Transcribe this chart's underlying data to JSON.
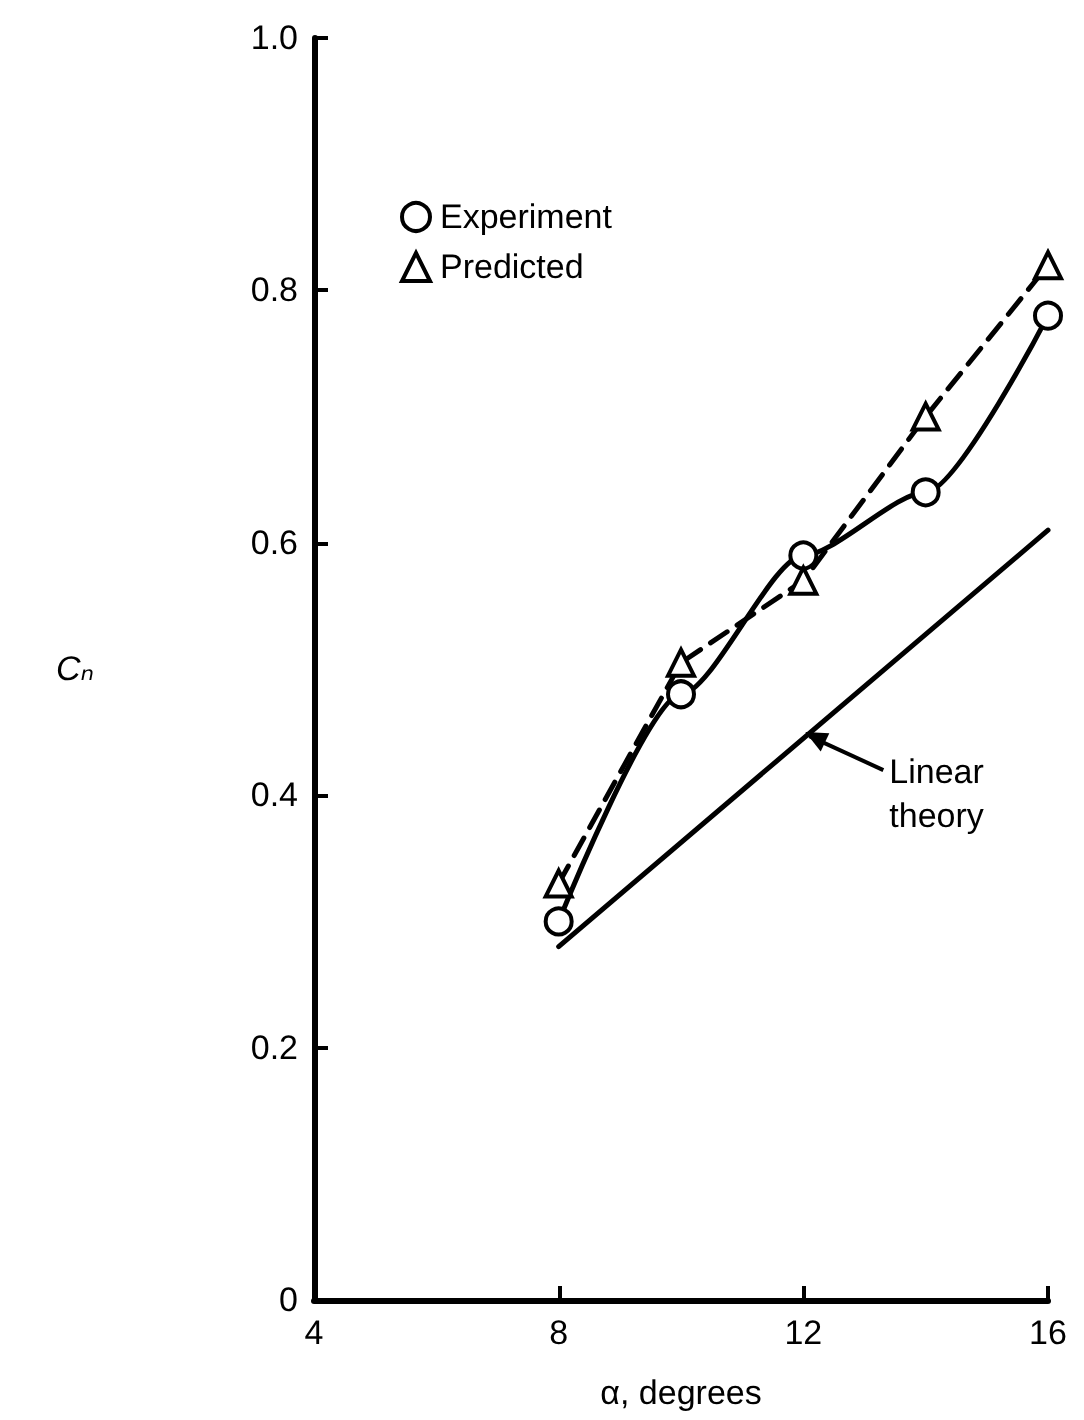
{
  "chart_data": {
    "type": "line",
    "xlabel": "α, degrees",
    "ylabel": "Cₙ",
    "xlim": [
      4,
      16
    ],
    "xticks": [
      4,
      8,
      12,
      16
    ],
    "ylim": [
      0,
      1
    ],
    "yticks": [
      0,
      0.2,
      0.4,
      0.6,
      0.8,
      {
        "value": 1,
        "label": "1.0"
      }
    ],
    "grid": false,
    "legend": "top left",
    "series": [
      {
        "name": "Experiment",
        "color": "#000000",
        "x": [
          8,
          10,
          12,
          14,
          16
        ],
        "values": [
          0.3,
          0.48,
          0.59,
          0.64,
          0.78
        ],
        "marker": "circle",
        "line_style": "solid"
      },
      {
        "name": "Predicted",
        "color": "#000000",
        "x": [
          8,
          10,
          12,
          14,
          16
        ],
        "values": [
          0.33,
          0.505,
          0.57,
          0.7,
          0.82
        ],
        "marker": "triangle",
        "line_style": "dashed"
      },
      {
        "color": "#000000",
        "x": [
          8,
          16
        ],
        "values": [
          0.28,
          0.61
        ],
        "marker": "none",
        "line_style": "solid"
      }
    ],
    "annotations": [
      {
        "text": "Linear theory",
        "x": 12,
        "y": 0.45
      }
    ]
  }
}
